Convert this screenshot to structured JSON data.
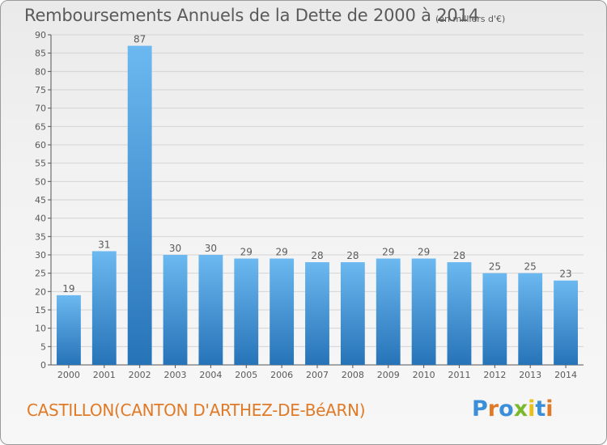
{
  "header": {
    "title": "Remboursements Annuels de la Dette de 2000 à 2014",
    "subtitle": "(en milliers d'€)"
  },
  "footer": {
    "place": "CASTILLON(CANTON D'ARTHEZ-DE-BéARN)",
    "logo": "Proxiti",
    "logo_colors": [
      "#3a8fd8",
      "#e07a26",
      "#3a8fd8",
      "#7ab82e",
      "#e8c018",
      "#3a8fd8",
      "#e07a26"
    ]
  },
  "colors": {
    "bar_light": "#6cb8f0",
    "bar_dark": "#2673b8",
    "axis": "#555555",
    "grid": "#d4d4d4",
    "text": "#5a5a5a",
    "accent": "#e07a26"
  },
  "chart_data": {
    "type": "bar",
    "title": "Remboursements Annuels de la Dette de 2000 à 2014",
    "subtitle": "(en milliers d'€)",
    "xlabel": "",
    "ylabel": "",
    "categories": [
      "2000",
      "2001",
      "2002",
      "2003",
      "2004",
      "2005",
      "2006",
      "2007",
      "2008",
      "2009",
      "2010",
      "2011",
      "2012",
      "2013",
      "2014"
    ],
    "values": [
      19,
      31,
      87,
      30,
      30,
      29,
      29,
      28,
      28,
      29,
      29,
      28,
      25,
      25,
      23
    ],
    "ylim": [
      0,
      90
    ],
    "yticks": [
      0,
      5,
      10,
      15,
      20,
      25,
      30,
      35,
      40,
      45,
      50,
      55,
      60,
      65,
      70,
      75,
      80,
      85,
      90
    ],
    "grid": true,
    "legend": "none"
  }
}
